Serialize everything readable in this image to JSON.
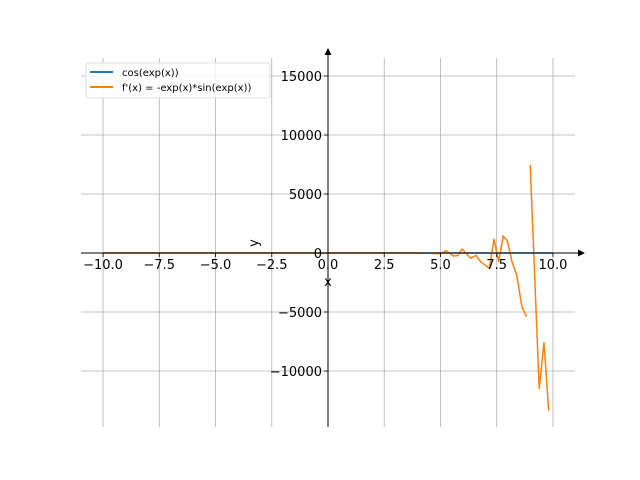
{
  "chart_data": {
    "type": "line",
    "title": "",
    "xlabel": "x",
    "ylabel": "y",
    "xlim": [
      -10.98,
      10.98
    ],
    "ylim": [
      -14745,
      16525
    ],
    "grid": true,
    "legend_position": "top-left",
    "x_ticks": [
      -10,
      -7.5,
      -5,
      -2.5,
      0,
      2.5,
      5,
      7.5,
      10
    ],
    "x_tick_labels": [
      "−10.0",
      "−7.5",
      "−5.0",
      "−2.5",
      "0.0",
      "2.5",
      "5.0",
      "7.5",
      "10.0"
    ],
    "y_ticks": [
      -10000,
      -5000,
      0,
      5000,
      10000,
      15000
    ],
    "y_tick_labels": [
      "−10000",
      "−5000",
      "0",
      "5000",
      "10000",
      "15000"
    ],
    "series": [
      {
        "name": "cos(exp(x))",
        "color": "#1f77b4",
        "x": [
          -10,
          -5,
          0,
          5,
          10
        ],
        "y": [
          0,
          0,
          0,
          0,
          0
        ]
      },
      {
        "name": "f'(x) = -exp(x)*sin(exp(x))",
        "color": "#ff7f0e",
        "segments": [
          {
            "x": [
              -10,
              0,
              3.8,
              4.6,
              5.0,
              5.26,
              5.57,
              5.77,
              5.96,
              6.34,
              6.58,
              6.79,
              7.17,
              7.38,
              7.59,
              7.79,
              7.97,
              8.18,
              8.39,
              8.62,
              8.83
            ],
            "y": [
              0,
              0,
              0,
              -30,
              -60,
              195,
              -250,
              -220,
              340,
              -450,
              -200,
              -740,
              -1300,
              1160,
              -740,
              1440,
              1040,
              -740,
              -1860,
              -4550,
              -5400
            ]
          },
          {
            "x": [
              8.99,
              9.39,
              9.6,
              9.81
            ],
            "y": [
              7460,
              -11470,
              -7600,
              -13370
            ]
          }
        ]
      }
    ]
  }
}
